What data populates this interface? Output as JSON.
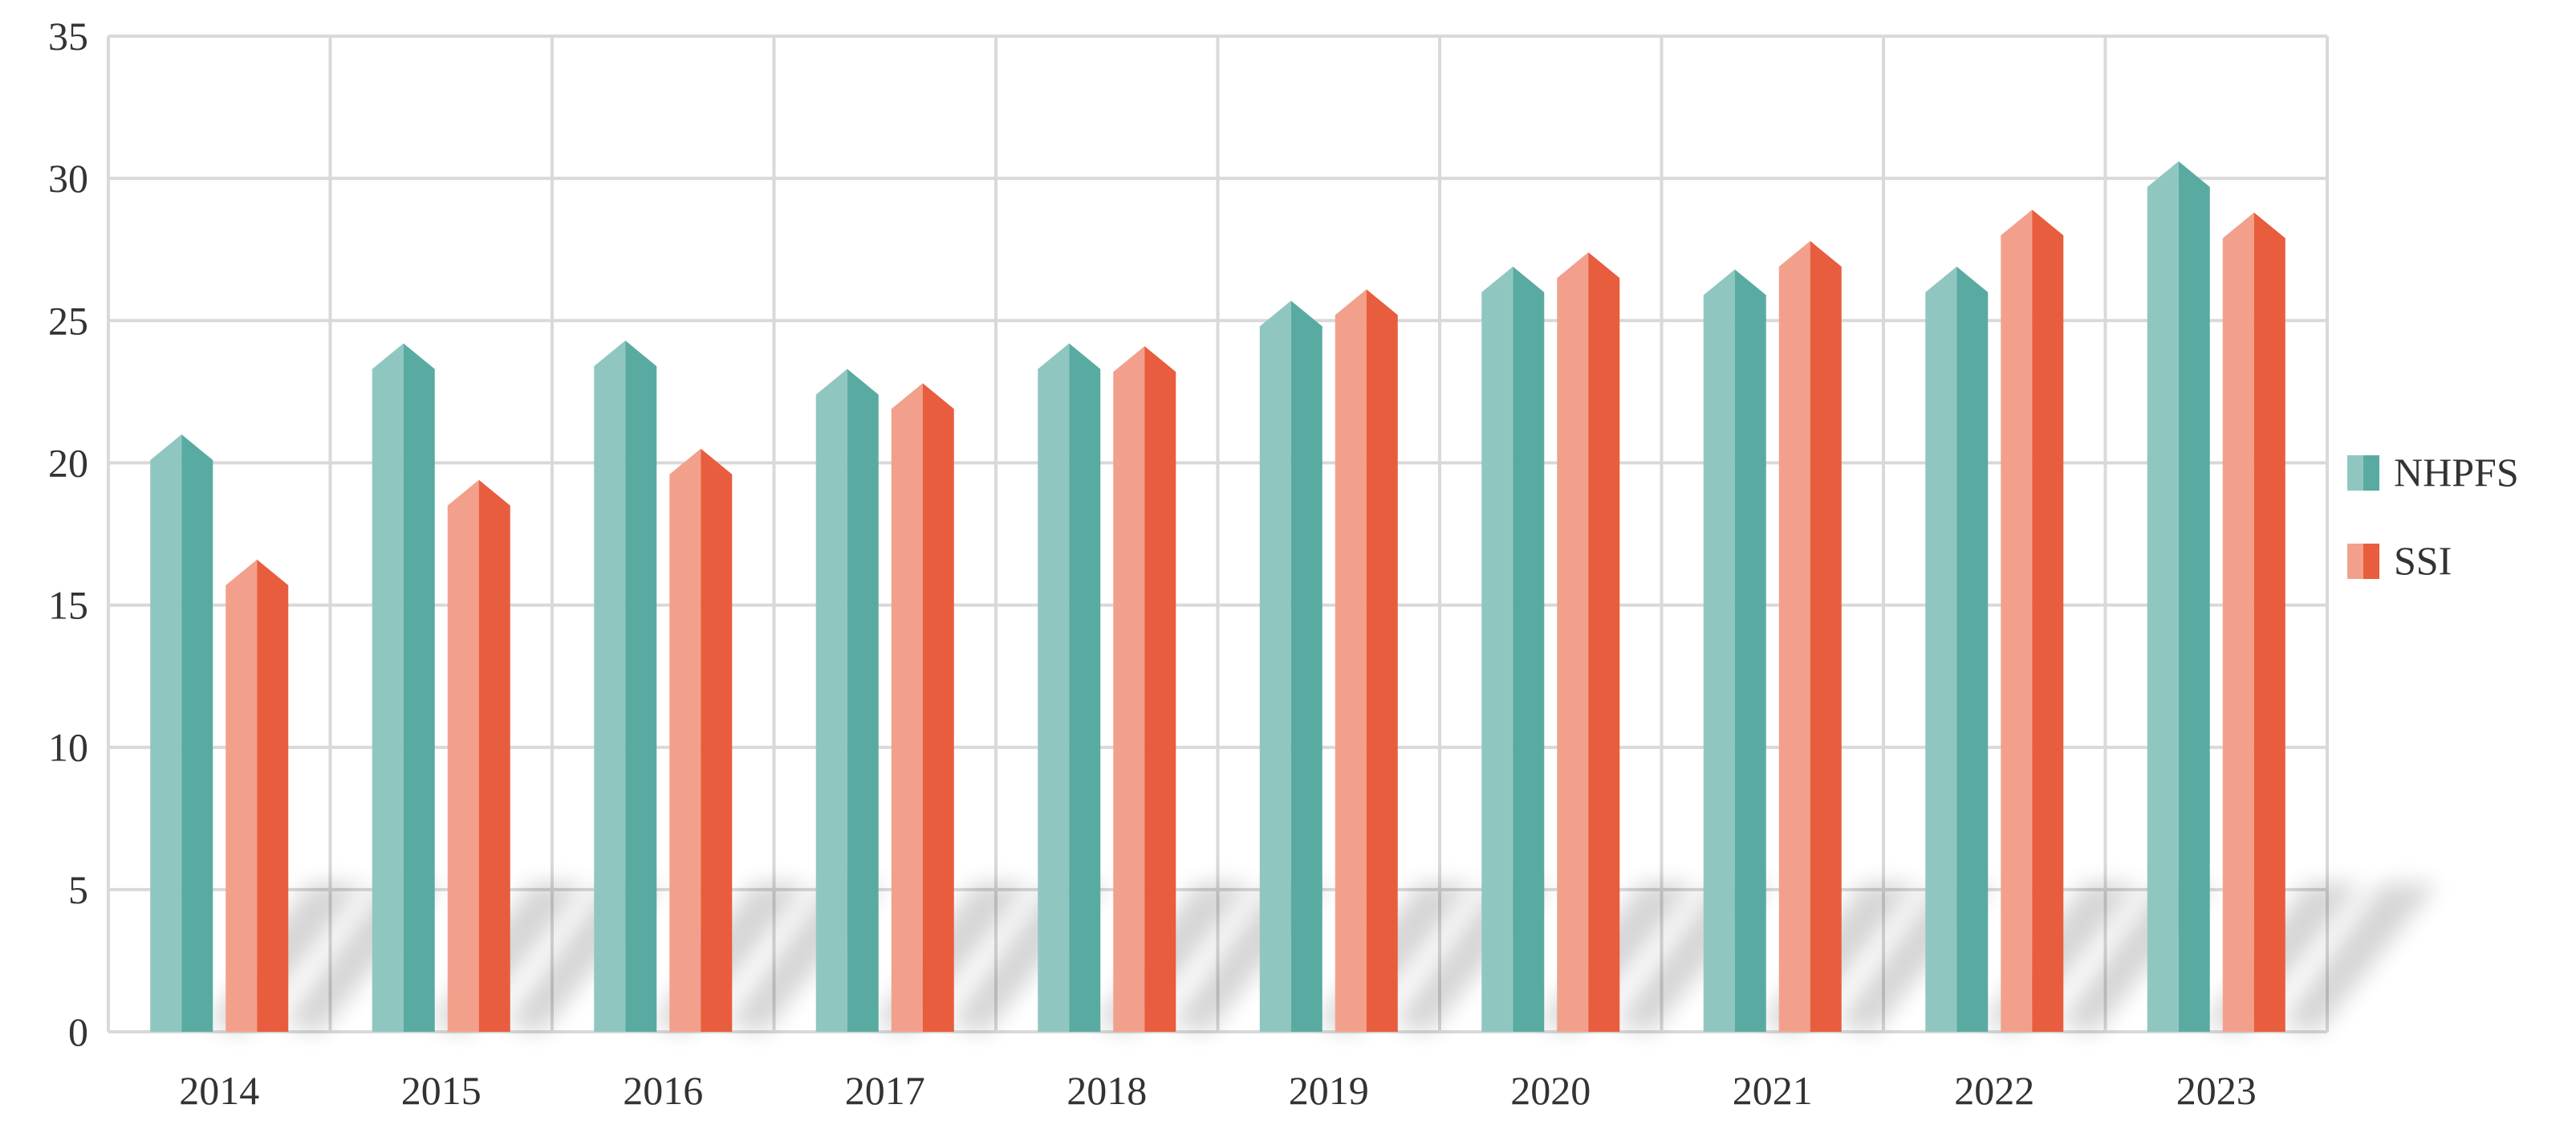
{
  "chart_data": {
    "type": "bar",
    "categories": [
      "2014",
      "2015",
      "2016",
      "2017",
      "2018",
      "2019",
      "2020",
      "2021",
      "2022",
      "2023"
    ],
    "series": [
      {
        "name": "NHPFS",
        "values": [
          21.0,
          24.2,
          24.3,
          23.3,
          24.2,
          25.7,
          26.9,
          26.8,
          26.9,
          30.6
        ],
        "color_light": "#8fc7c0",
        "color_dark": "#59aba2"
      },
      {
        "name": "SSI",
        "values": [
          16.6,
          19.4,
          20.5,
          22.8,
          24.1,
          26.1,
          27.4,
          27.8,
          28.9,
          28.8
        ],
        "color_light": "#f2a08c",
        "color_dark": "#e85d3d"
      }
    ],
    "yticks": [
      "0",
      "5",
      "10",
      "15",
      "20",
      "25",
      "30",
      "35"
    ],
    "ylim": [
      0,
      35
    ],
    "grid": true,
    "legend": "right",
    "title": "",
    "xlabel": "",
    "ylabel": "",
    "gridline_color": "#d9d9d9"
  }
}
